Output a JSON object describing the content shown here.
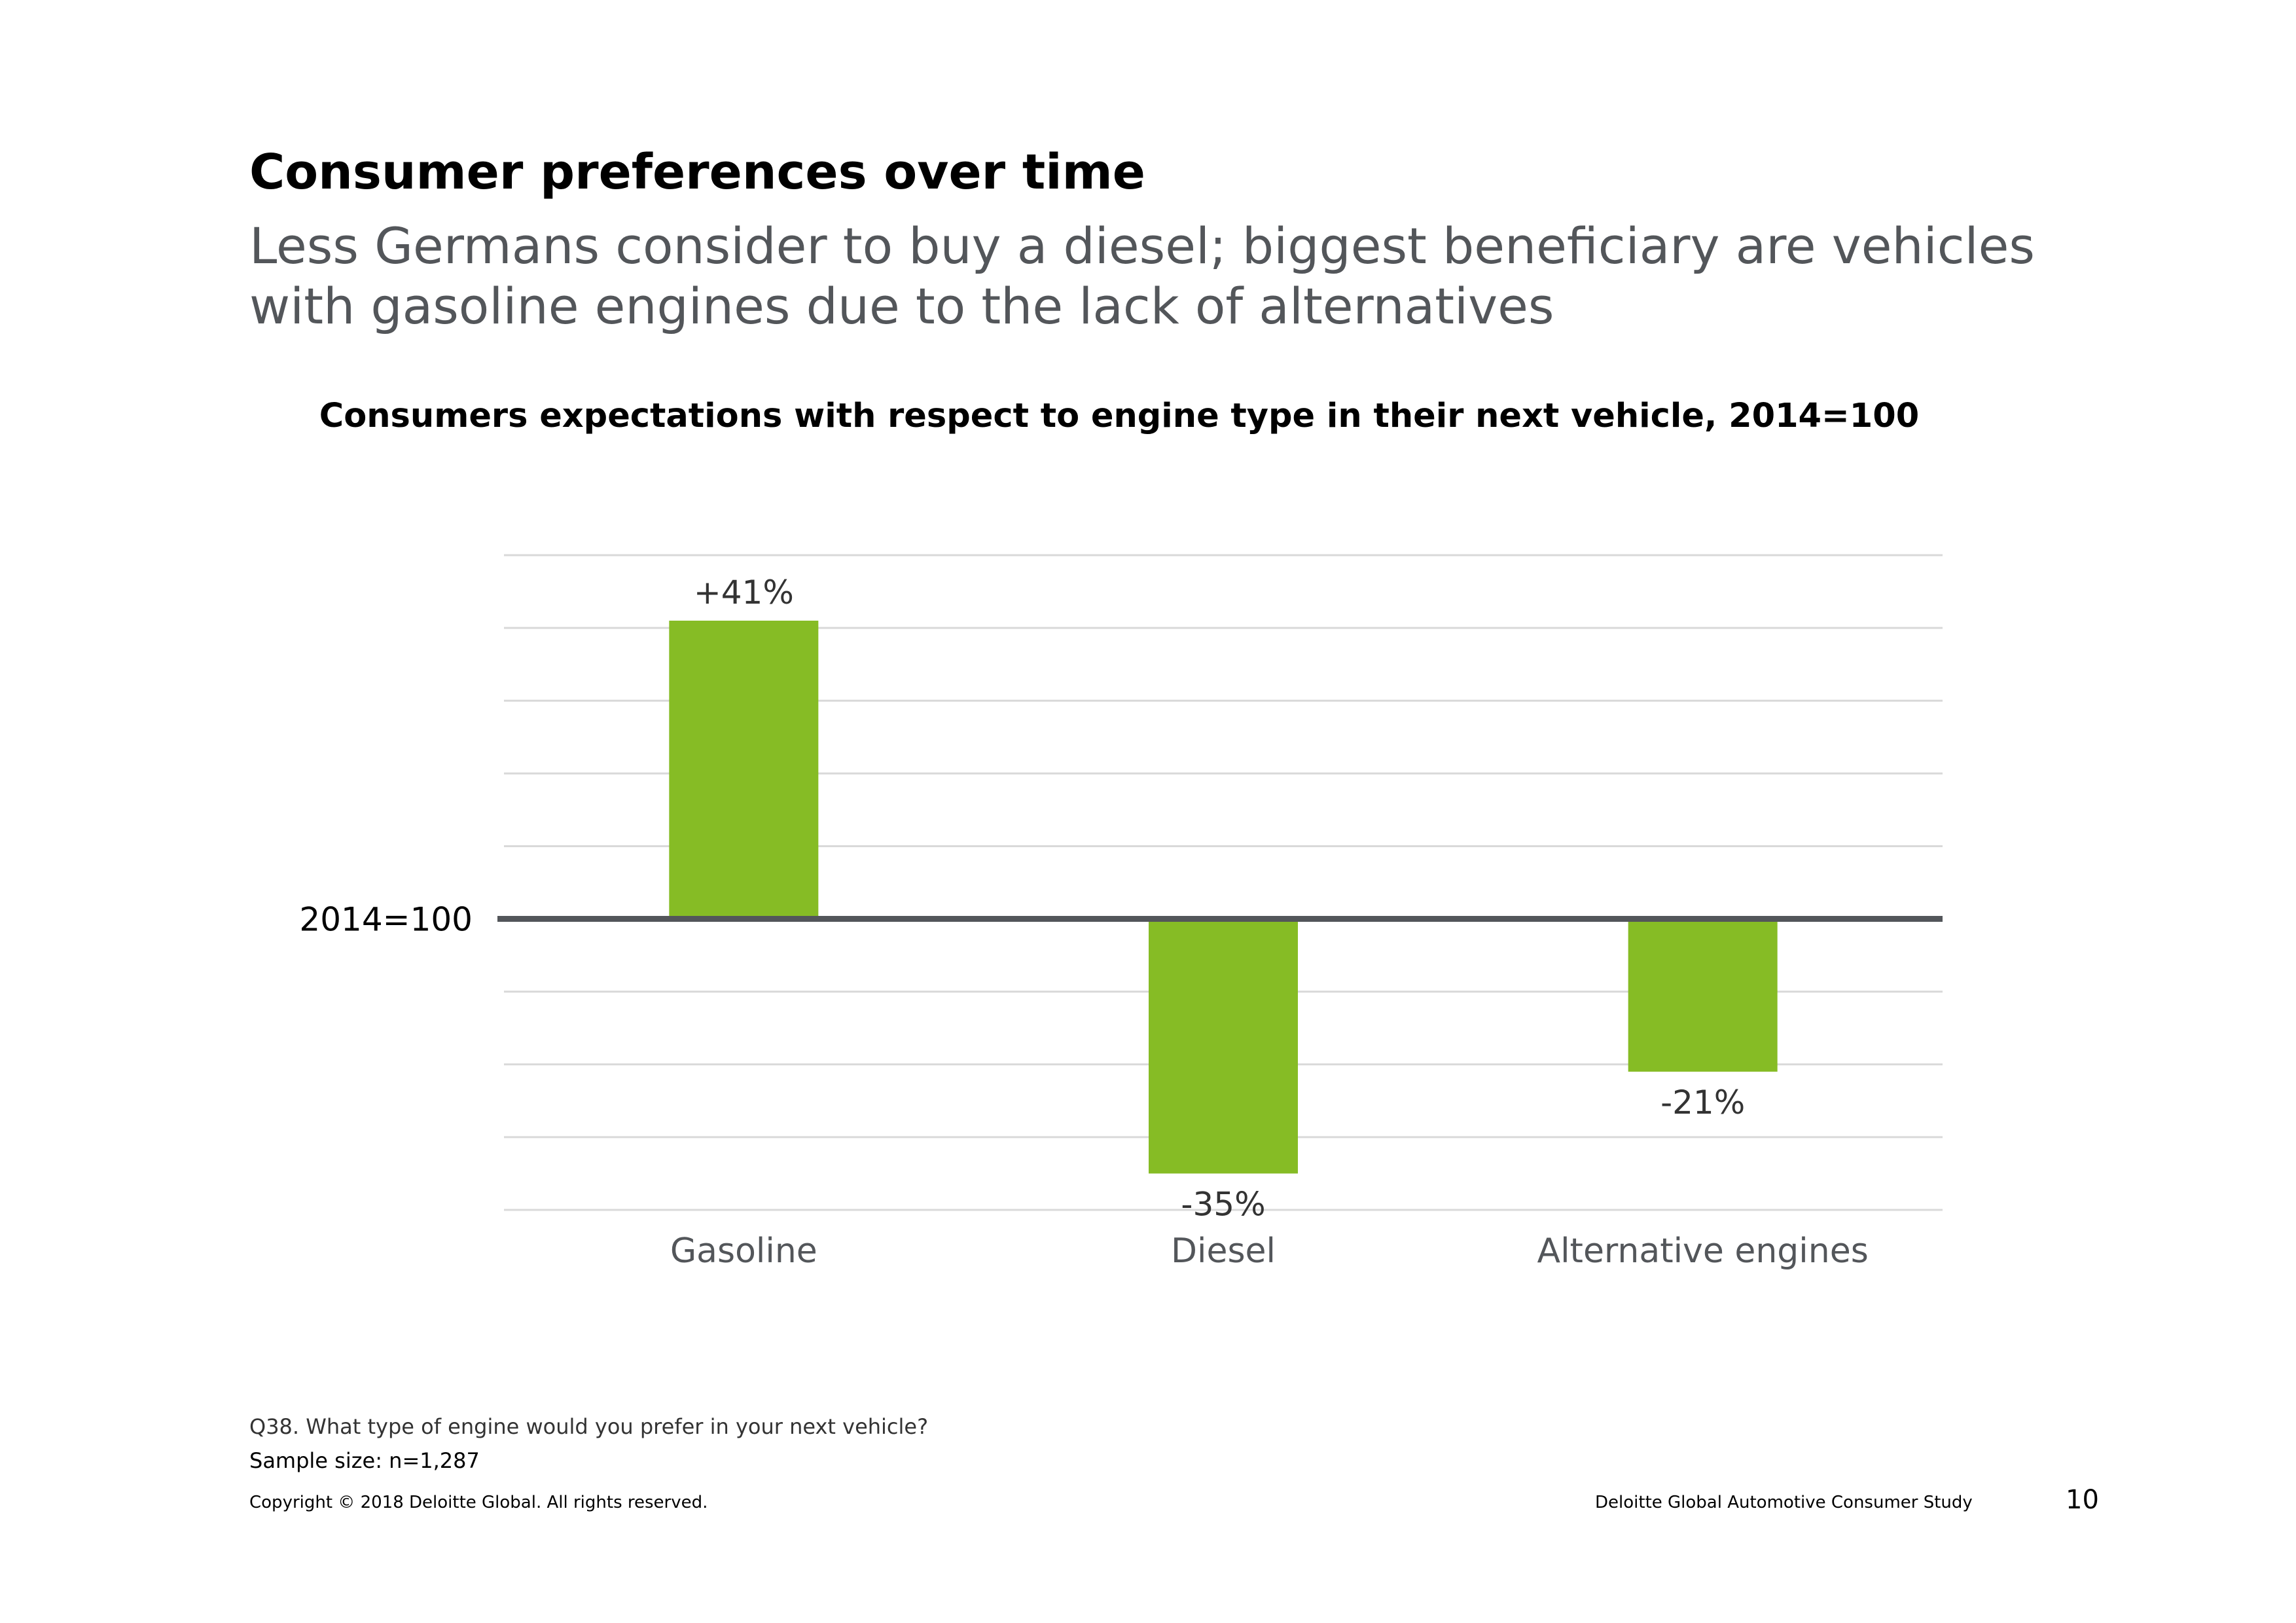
{
  "header": {
    "title": "Consumer preferences over time",
    "subtitle_line1": "Less Germans consider to buy a diesel; biggest beneficiary are vehicles",
    "subtitle_line2": "with gasoline engines due to the lack of alternatives"
  },
  "chart_data": {
    "type": "bar",
    "title": "Consumers expectations with respect to engine type in their next vehicle, 2014=100",
    "categories": [
      "Gasoline",
      "Diesel",
      "Alternative engines"
    ],
    "values": [
      41,
      -35,
      -21
    ],
    "data_labels": [
      "+41%",
      "-35%",
      "-21%"
    ],
    "baseline_label": "2014=100",
    "ylim": [
      -40,
      50
    ],
    "gridlines": true,
    "grid_step": 10,
    "bar_color": "#86bc25",
    "baseline_color": "#53565a",
    "grid_color": "#d9d9d9"
  },
  "footer": {
    "question": "Q38. What type of engine would you prefer in your next vehicle?",
    "sample": "Sample size: n=1,287",
    "copyright": "Copyright © 2018 Deloitte Global. All rights reserved.",
    "study": "Deloitte Global Automotive Consumer Study",
    "page_number": "10"
  }
}
